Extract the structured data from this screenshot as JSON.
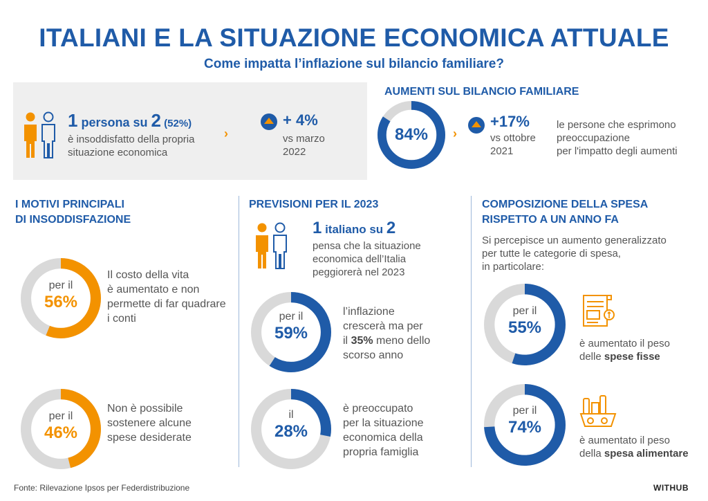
{
  "title": "ITALIANI E LA SITUAZIONE ECONOMICA ATTUALE",
  "subtitle": "Come impatta l’inflazione sul bilancio familiare?",
  "top_left": {
    "stat_bold_1": "1",
    "stat_text_1": " persona su ",
    "stat_bold_2": "2",
    "stat_pct": " (52%)",
    "desc_line1": "è insoddisfatto della propria",
    "desc_line2": "situazione economica",
    "change_value": "+ 4%",
    "change_line1": "vs marzo",
    "change_line2": "2022"
  },
  "aumenti": {
    "title": "AUMENTI SUL BILANCIO FAMILIARE",
    "donut_label": "84%",
    "donut_value": 84,
    "change_value": "+17%",
    "change_line1": "vs ottobre",
    "change_line2": "2021",
    "desc_line1": "le persone che esprimono",
    "desc_line2": "preoccupazione",
    "desc_line3": "per l'impatto degli aumenti"
  },
  "motivi": {
    "title_line1": "I MOTIVI PRINCIPALI",
    "title_line2": "DI INSODDISFAZIONE",
    "items": [
      {
        "prefix": "per il",
        "pct_label": "56%",
        "value": 56,
        "line1": "Il costo della vita",
        "line2": "è aumentato e non",
        "line3": "permette di far quadrare",
        "line4": "i conti"
      },
      {
        "prefix": "per il",
        "pct_label": "46%",
        "value": 46,
        "line1": "Non è possibile",
        "line2": "sostenere alcune",
        "line3": "spese desiderate",
        "line4": ""
      }
    ]
  },
  "previsioni": {
    "title": "PREVISIONI PER IL 2023",
    "stat_bold_1": "1",
    "stat_text_1": " italiano su ",
    "stat_bold_2": "2",
    "desc_line1": "pensa che la situazione",
    "desc_line2": "economica dell’Italia",
    "desc_line3": "peggiorerà nel 2023",
    "items": [
      {
        "prefix": "per il",
        "pct_label": "59%",
        "value": 59,
        "line1": "l’inflazione",
        "line2": "crescerà ma per",
        "line3_pre": "il ",
        "line3_bold": "35%",
        "line3_post": " meno dello",
        "line4": "scorso anno"
      },
      {
        "prefix": "il",
        "pct_label": "28%",
        "value": 28,
        "line1": "è preoccupato",
        "line2": "per la situazione",
        "line3": "economica della",
        "line4": "propria famiglia"
      }
    ]
  },
  "composizione": {
    "title_line1": "COMPOSIZIONE DELLA SPESA",
    "title_line2": "RISPETTO A UN ANNO FA",
    "intro_line1": "Si percepisce un aumento generalizzato",
    "intro_line2": "per tutte le categorie di spesa,",
    "intro_line3": "in particolare:",
    "items": [
      {
        "prefix": "per il",
        "pct_label": "55%",
        "value": 55,
        "line1": "è aumentato il peso",
        "line2_pre": "delle ",
        "line2_bold": "spese fisse",
        "icon": "bill-icon"
      },
      {
        "prefix": "per il",
        "pct_label": "74%",
        "value": 74,
        "line1": "è aumentato il peso",
        "line2_pre": "della ",
        "line2_bold": "spesa alimentare",
        "icon": "grocery-basket-icon"
      }
    ]
  },
  "footer": {
    "source": "Fonte: Rilevazione Ipsos per Federdistribuzione",
    "brand": "WITHUB"
  },
  "colors": {
    "blue": "#1f5ba8",
    "orange": "#f39200",
    "track": "#d9d9d9",
    "gray_box": "#efefef"
  }
}
